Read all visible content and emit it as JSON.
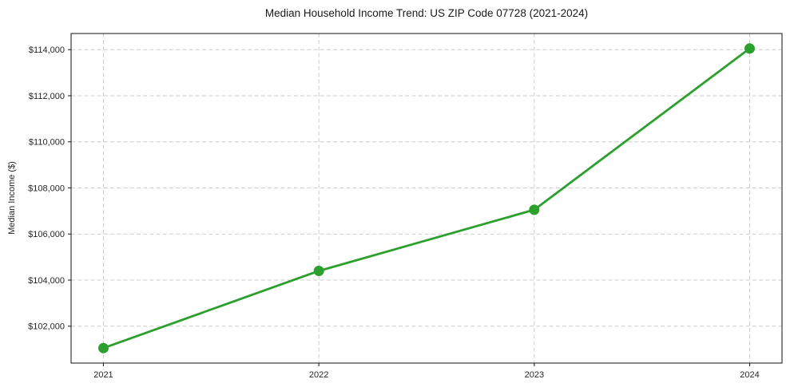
{
  "chart_data": {
    "type": "line",
    "title": "Median Household Income Trend: US ZIP Code 07728 (2021-2024)",
    "xlabel": "",
    "ylabel": "Median Income ($)",
    "x": [
      2021,
      2022,
      2023,
      2024
    ],
    "xtick_labels": [
      "2021",
      "2022",
      "2023",
      "2024"
    ],
    "series": [
      {
        "name": "Median Household Income",
        "values": [
          101050,
          104400,
          107050,
          114050
        ],
        "color": "#2ca02c",
        "marker": "o"
      }
    ],
    "yticks": [
      102000,
      104000,
      106000,
      108000,
      110000,
      112000,
      114000
    ],
    "ytick_labels": [
      "$102,000",
      "$104,000",
      "$106,000",
      "$108,000",
      "$110,000",
      "$112,000",
      "$114,000"
    ],
    "ylim": [
      100400,
      114700
    ],
    "xlim": [
      2020.85,
      2024.15
    ],
    "grid": true,
    "grid_style": "dashed",
    "grid_color": "#cccccc",
    "spine_color": "#262626",
    "text_color": "#262626",
    "background_color": "#ffffff",
    "legend": "none"
  }
}
